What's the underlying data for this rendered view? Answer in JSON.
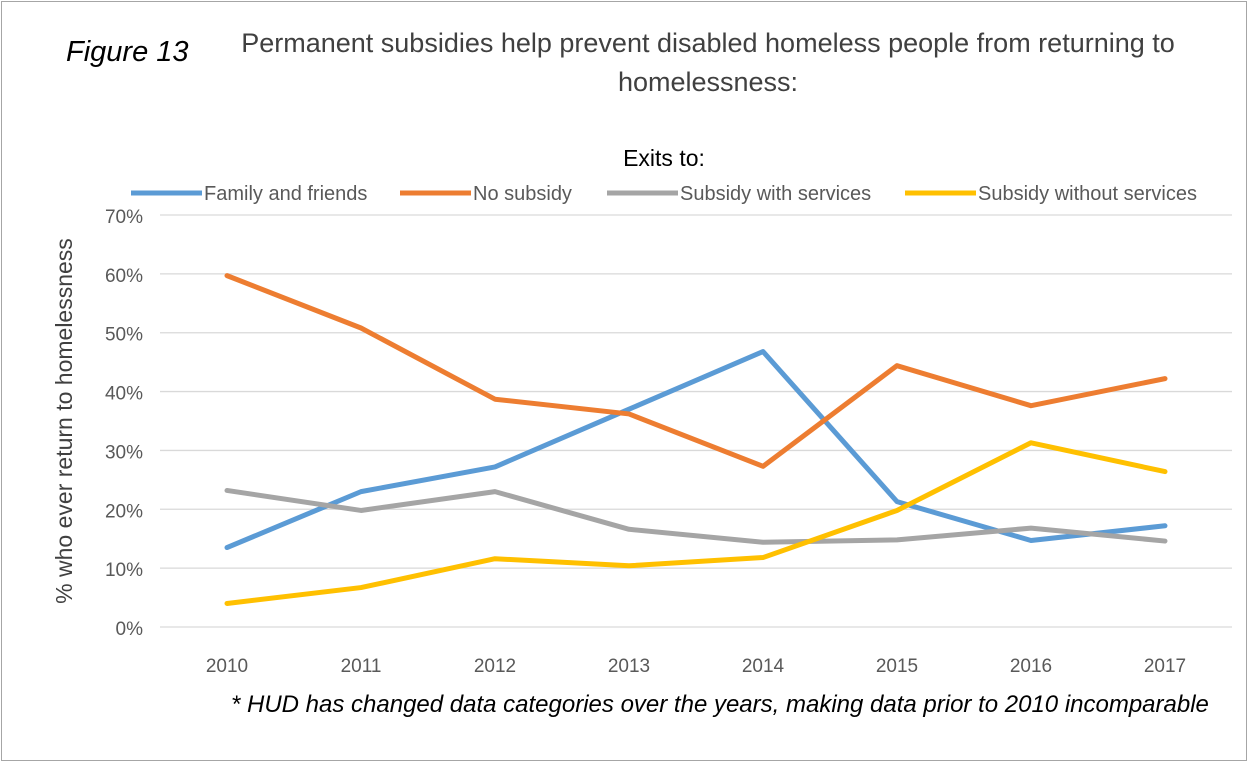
{
  "figure_label": "Figure 13",
  "footnote": "* HUD has changed data categories over the years, making data prior to 2010 incomparable",
  "chart_data": {
    "type": "line",
    "title": "Permanent subsidies help prevent disabled homeless people from returning to homelessness:",
    "legend_title": "Exits to:",
    "legend_position": "top",
    "ylabel": "% who ever return to homelessness",
    "xlabel": "",
    "x": [
      "2010",
      "2011",
      "2012",
      "2013",
      "2014",
      "2015",
      "2016",
      "2017"
    ],
    "ylim": [
      0,
      70
    ],
    "yticks": [
      0,
      10,
      20,
      30,
      40,
      50,
      60,
      70
    ],
    "ytick_labels": [
      "0%",
      "10%",
      "20%",
      "30%",
      "40%",
      "50%",
      "60%",
      "70%"
    ],
    "grid": true,
    "series": [
      {
        "name": "Family and friends",
        "color": "#5b9bd5",
        "values": [
          13.5,
          23.0,
          27.2,
          37.0,
          46.8,
          21.3,
          14.7,
          17.2
        ]
      },
      {
        "name": "No subsidy",
        "color": "#ed7d31",
        "values": [
          59.7,
          50.8,
          38.7,
          36.2,
          27.3,
          44.4,
          37.6,
          42.2
        ]
      },
      {
        "name": "Subsidy with services",
        "color": "#a5a5a5",
        "values": [
          23.2,
          19.8,
          23.0,
          16.6,
          14.4,
          14.8,
          16.8,
          14.6
        ]
      },
      {
        "name": "Subsidy without services",
        "color": "#ffc000",
        "values": [
          4.0,
          6.7,
          11.6,
          10.4,
          11.8,
          19.8,
          31.3,
          26.4
        ]
      }
    ]
  }
}
